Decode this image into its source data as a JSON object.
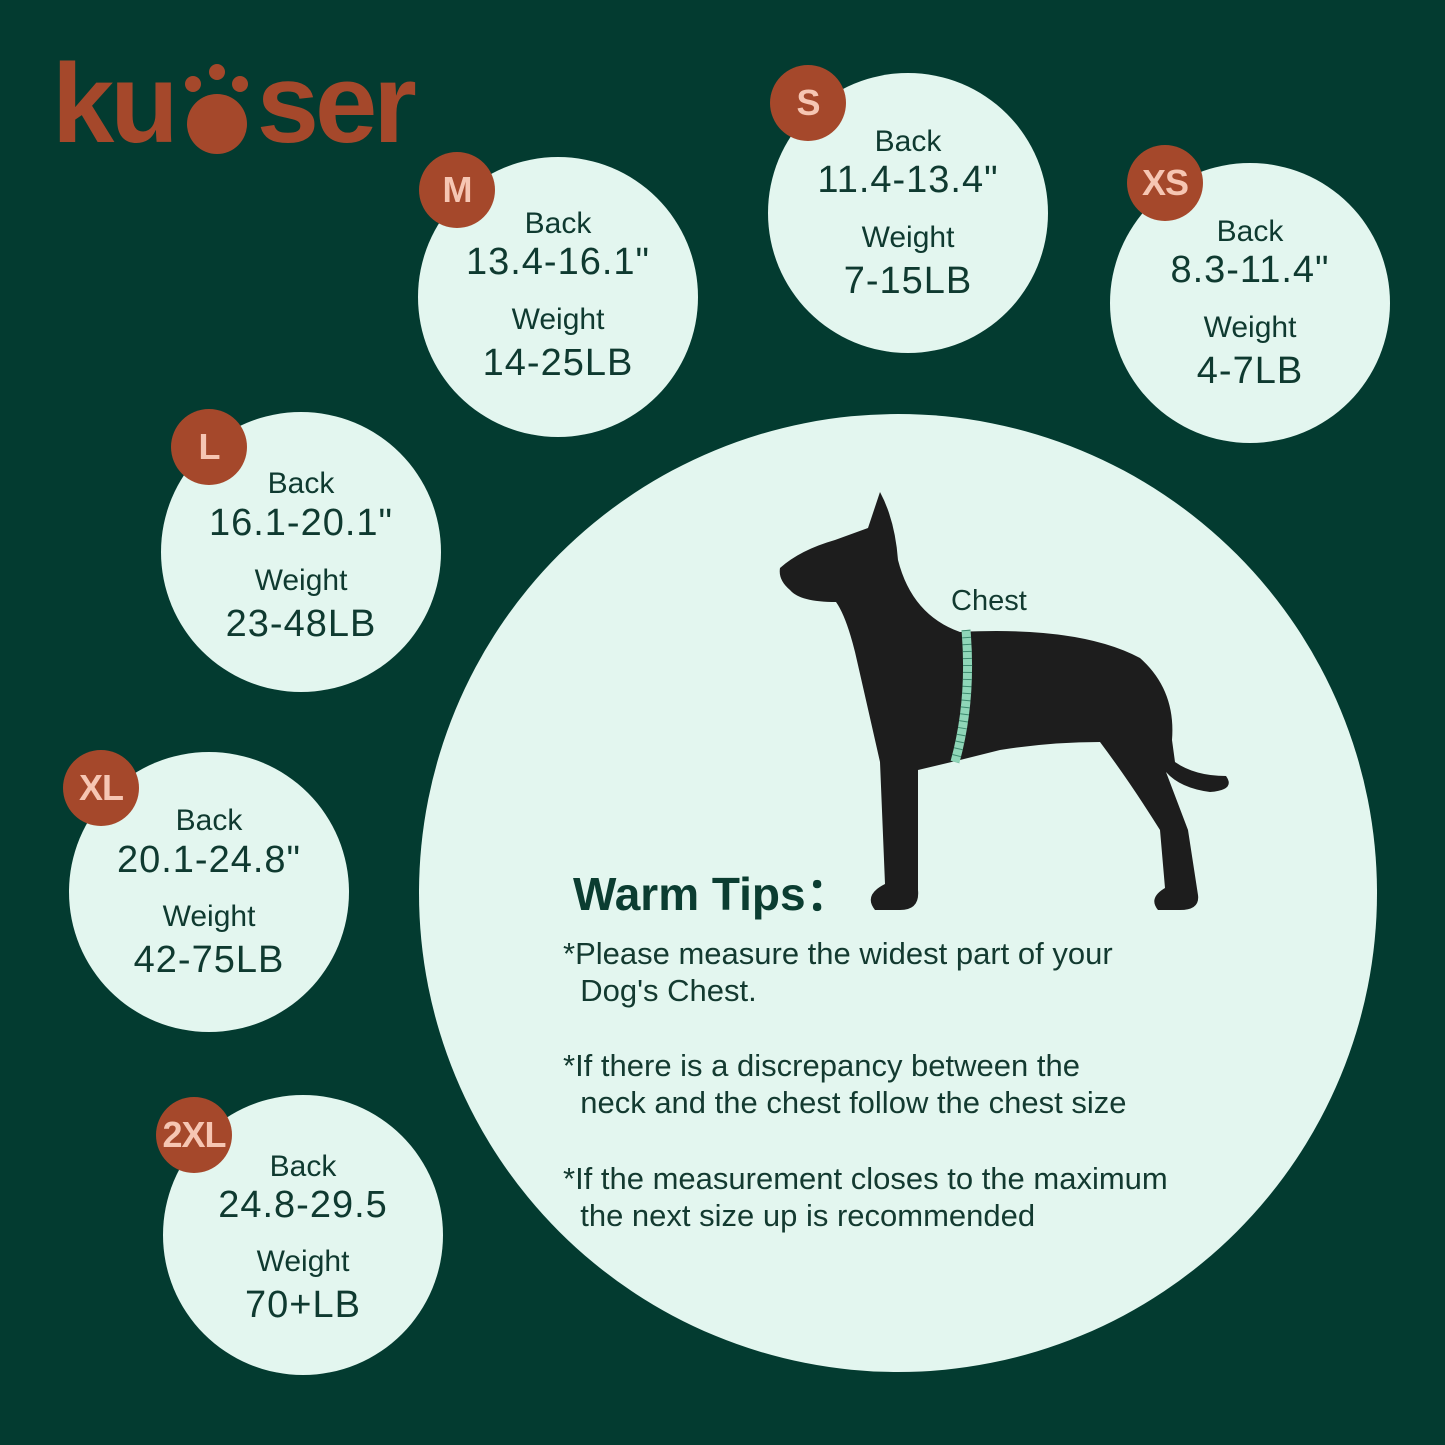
{
  "logo": {
    "part1": "ku",
    "part2": "ser",
    "brand": "kuoser",
    "color": "#a5482b"
  },
  "colors": {
    "background": "#033b30",
    "circle": "#e3f6ef",
    "badge": "#a5482b",
    "badge_text": "#f6c6b3"
  },
  "sizes": [
    {
      "size": "M",
      "back_label": "Back",
      "back": "13.4-16.1\"",
      "weight_label": "Weight",
      "weight": "14-25LB"
    },
    {
      "size": "S",
      "back_label": "Back",
      "back": "11.4-13.4\"",
      "weight_label": "Weight",
      "weight": "7-15LB"
    },
    {
      "size": "XS",
      "back_label": "Back",
      "back": "8.3-11.4\"",
      "weight_label": "Weight",
      "weight": "4-7LB"
    },
    {
      "size": "L",
      "back_label": "Back",
      "back": "16.1-20.1\"",
      "weight_label": "Weight",
      "weight": "23-48LB"
    },
    {
      "size": "XL",
      "back_label": "Back",
      "back": "20.1-24.8\"",
      "weight_label": "Weight",
      "weight": "42-75LB"
    },
    {
      "size": "2XL",
      "back_label": "Back",
      "back": "24.8-29.5",
      "weight_label": "Weight",
      "weight": "70+LB"
    }
  ],
  "diagram": {
    "chest_label": "Chest",
    "icon": "dog-silhouette-icon"
  },
  "tips": {
    "title": "Warm Tips：",
    "items": [
      "*Please measure the widest part of your\n  Dog's Chest.",
      "*If there is a discrepancy between the\n  neck and the chest follow the chest size",
      "*If the measurement closes to the maximum\n  the next size up is recommended"
    ]
  }
}
